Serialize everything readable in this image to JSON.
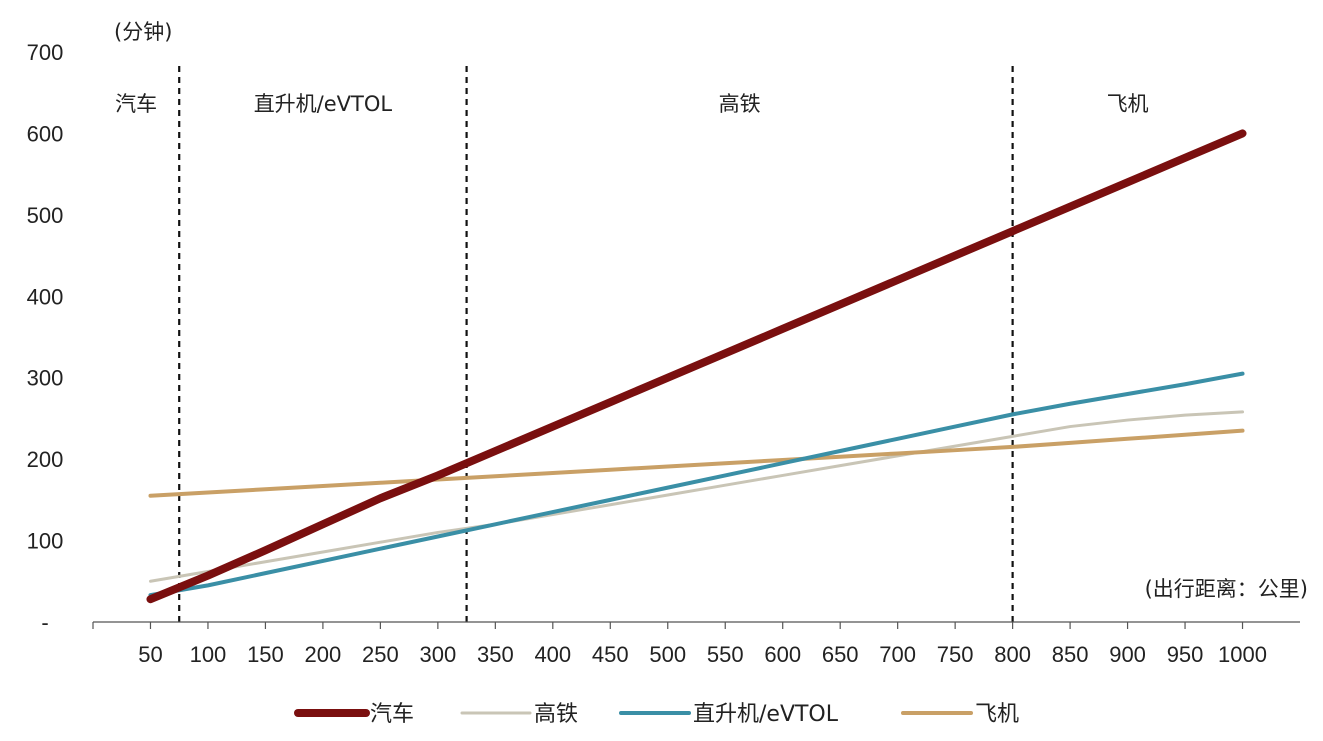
{
  "chart_data": {
    "type": "line",
    "y_unit_label": "(分钟)",
    "x_unit_label": "(出行距离：公里)",
    "x": [
      50,
      100,
      150,
      200,
      250,
      300,
      350,
      400,
      450,
      500,
      550,
      600,
      650,
      700,
      750,
      800,
      850,
      900,
      950,
      1000
    ],
    "xlim": [
      0,
      1050
    ],
    "ylim": [
      0,
      700
    ],
    "y_ticks": [
      {
        "value": 0,
        "label": "-"
      },
      {
        "value": 100,
        "label": "100"
      },
      {
        "value": 200,
        "label": "200"
      },
      {
        "value": 300,
        "label": "300"
      },
      {
        "value": 400,
        "label": "400"
      },
      {
        "value": 500,
        "label": "500"
      },
      {
        "value": 600,
        "label": "600"
      },
      {
        "value": 700,
        "label": "700"
      }
    ],
    "series": [
      {
        "name": "汽车",
        "color": "#7a0f0f",
        "width": 8,
        "values": [
          28,
          57,
          88,
          120,
          152,
          180,
          210,
          240,
          270,
          300,
          330,
          360,
          390,
          420,
          450,
          480,
          510,
          540,
          570,
          600
        ]
      },
      {
        "name": "高铁",
        "color": "#c9c5b6",
        "width": 3,
        "values": [
          50,
          62,
          74,
          86,
          98,
          110,
          120,
          132,
          144,
          156,
          168,
          180,
          192,
          204,
          216,
          228,
          240,
          248,
          254,
          258
        ]
      },
      {
        "name": "直升机/eVTOL",
        "color": "#3a8fa6",
        "width": 4,
        "values": [
          33,
          45,
          60,
          75,
          90,
          105,
          120,
          135,
          150,
          165,
          180,
          195,
          210,
          225,
          240,
          255,
          268,
          280,
          292,
          305
        ]
      },
      {
        "name": "飞机",
        "color": "#c9a066",
        "width": 4,
        "values": [
          155,
          159,
          163,
          167,
          171,
          175,
          179,
          183,
          187,
          191,
          195,
          199,
          203,
          207,
          211,
          215,
          220,
          225,
          230,
          235
        ]
      }
    ],
    "regions": [
      {
        "label": "汽车",
        "from": 0,
        "to": 75
      },
      {
        "label": "直升机/eVTOL",
        "from": 75,
        "to": 325
      },
      {
        "label": "高铁",
        "from": 325,
        "to": 800
      },
      {
        "label": "飞机",
        "from": 800,
        "to": 1000
      }
    ],
    "divider_x": [
      75,
      325,
      800
    ],
    "legend_position": "bottom",
    "grid": false
  }
}
